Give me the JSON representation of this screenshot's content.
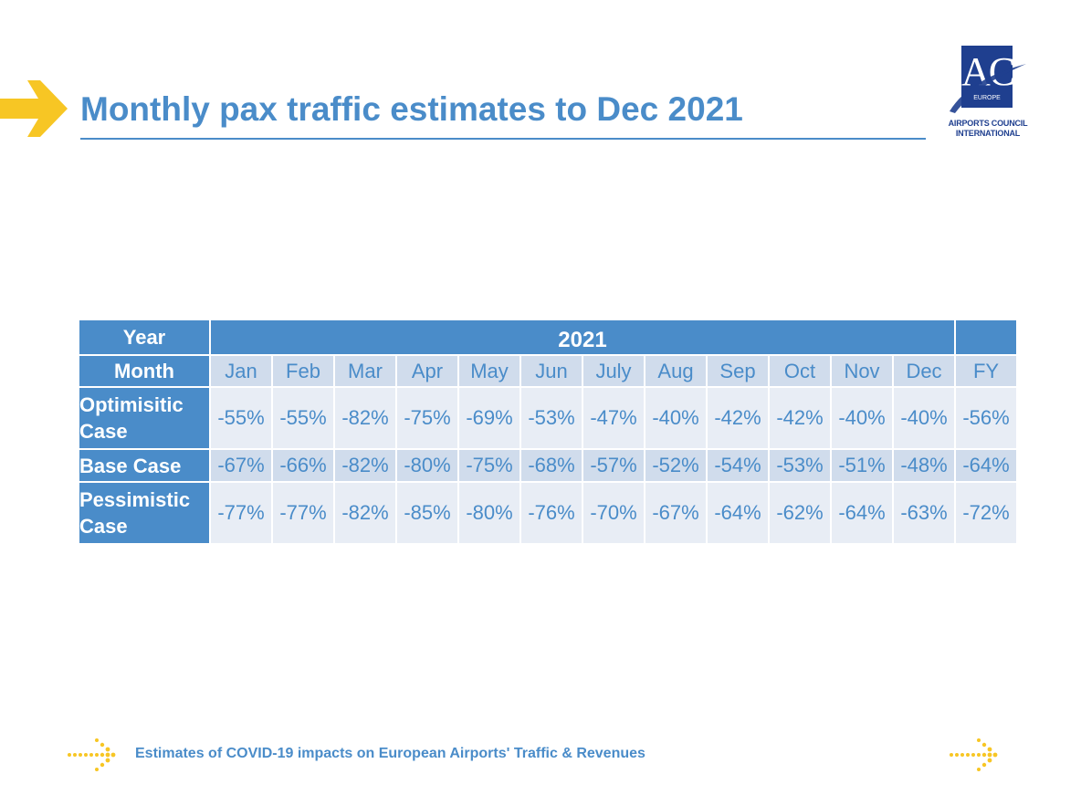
{
  "header": {
    "title": "Monthly pax traffic estimates to Dec 2021",
    "logo": {
      "mark": "ACI",
      "region": "EUROPE",
      "name_line1": "AIRPORTS COUNCIL",
      "name_line2": "INTERNATIONAL"
    }
  },
  "table": {
    "year_label": "Year",
    "year_value": "2021",
    "month_label": "Month",
    "months": [
      "Jan",
      "Feb",
      "Mar",
      "Apr",
      "May",
      "Jun",
      "July",
      "Aug",
      "Sep",
      "Oct",
      "Nov",
      "Dec",
      "FY"
    ],
    "rows": [
      {
        "label_line1": "Optimisitic",
        "label_line2": "Case",
        "values": [
          "-55%",
          "-55%",
          "-82%",
          "-75%",
          "-69%",
          "-53%",
          "-47%",
          "-40%",
          "-42%",
          "-42%",
          "-40%",
          "-40%",
          "-56%"
        ]
      },
      {
        "label_line1": "Base Case",
        "label_line2": "",
        "values": [
          "-67%",
          "-66%",
          "-82%",
          "-80%",
          "-75%",
          "-68%",
          "-57%",
          "-52%",
          "-54%",
          "-53%",
          "-51%",
          "-48%",
          "-64%"
        ]
      },
      {
        "label_line1": "Pessimistic",
        "label_line2": "Case",
        "values": [
          "-77%",
          "-77%",
          "-82%",
          "-85%",
          "-80%",
          "-76%",
          "-70%",
          "-67%",
          "-64%",
          "-62%",
          "-64%",
          "-63%",
          "-72%"
        ]
      }
    ]
  },
  "footer": {
    "text": "Estimates of COVID-19 impacts on European Airports' Traffic & Revenues"
  },
  "colors": {
    "accent_blue": "#4a8cc9",
    "arrow_yellow": "#f7c624",
    "logo_navy": "#1f3f8f",
    "cell_light": "#e8edf5",
    "cell_mid": "#d0dcec"
  }
}
